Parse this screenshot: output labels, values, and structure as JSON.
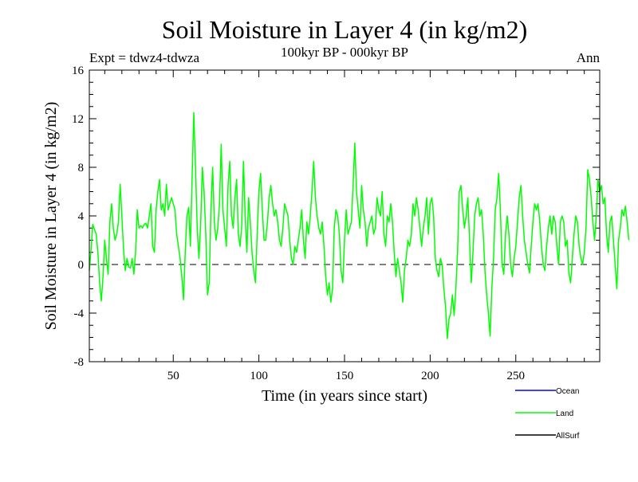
{
  "chart_data": {
    "type": "line",
    "title": "Soil Moisture in Layer 4 (in kg/m2)",
    "subtitle": "100kyr BP - 000kyr BP",
    "expt_label": "Expt = tdwz4-tdwza",
    "season_label": "Ann",
    "xlabel": "Time (in years since start)",
    "ylabel": "Soil Moisture in Layer 4 (in kg/m2)",
    "xlim": [
      1,
      299
    ],
    "ylim": [
      -8,
      16
    ],
    "x_ticks": [
      50,
      100,
      150,
      200,
      250
    ],
    "y_ticks": [
      -8,
      -4,
      0,
      4,
      8,
      12,
      16
    ],
    "grid": false,
    "zero_line": "dashed",
    "legend_position": "bottom-right",
    "series": [
      {
        "name": "Ocean",
        "color": "#0000ff",
        "values": []
      },
      {
        "name": "AllSurf",
        "color": "#000000",
        "values": []
      },
      {
        "name": "Land",
        "color": "#00ff00",
        "x_start": 1,
        "x_step": 1,
        "values": [
          -0.5,
          1.2,
          3.3,
          2.9,
          2.5,
          1.0,
          -1.5,
          -3.0,
          -1.0,
          2.0,
          0.5,
          -0.8,
          3.5,
          5.0,
          3.0,
          2.0,
          2.5,
          3.5,
          6.6,
          4.0,
          1.2,
          -0.5,
          0.5,
          -0.2,
          -0.3,
          0.5,
          -0.8,
          1.0,
          4.5,
          3.0,
          3.2,
          3.0,
          3.3,
          3.4,
          3.0,
          4.0,
          5.0,
          1.5,
          1.0,
          4.5,
          6.0,
          7.0,
          4.5,
          5.0,
          4.0,
          6.6,
          4.5,
          5.0,
          5.5,
          5.0,
          4.5,
          2.5,
          1.5,
          0.5,
          -1.0,
          -2.9,
          1.0,
          4.0,
          4.7,
          1.5,
          7.0,
          12.5,
          8.0,
          3.0,
          0.5,
          3.3,
          8.0,
          6.0,
          2.5,
          -2.5,
          -1.5,
          4.5,
          8.0,
          3.5,
          2.0,
          3.0,
          5.0,
          9.9,
          4.5,
          3.0,
          1.5,
          6.5,
          8.5,
          4.0,
          3.0,
          5.5,
          7.0,
          2.5,
          1.5,
          3.2,
          8.5,
          4.0,
          1.0,
          5.5,
          3.5,
          1.0,
          -0.5,
          -1.5,
          2.5,
          6.0,
          7.5,
          4.5,
          2.0,
          2.0,
          3.5,
          5.5,
          6.5,
          5.0,
          4.0,
          4.5,
          3.5,
          2.0,
          1.5,
          3.0,
          5.0,
          4.5,
          4.0,
          2.0,
          0.5,
          0.0,
          1.5,
          1.0,
          2.0,
          3.0,
          4.5,
          2.0,
          0.5,
          3.5,
          2.5,
          4.0,
          6.0,
          8.5,
          5.5,
          4.0,
          3.0,
          2.5,
          3.5,
          1.5,
          -1.0,
          -2.5,
          -1.5,
          -3.1,
          -2.0,
          3.0,
          4.5,
          4.0,
          2.5,
          -0.5,
          -1.5,
          2.0,
          4.5,
          2.5,
          3.0,
          3.5,
          6.5,
          10.0,
          6.0,
          4.5,
          3.0,
          6.5,
          4.5,
          3.5,
          1.5,
          3.0,
          3.5,
          4.0,
          2.5,
          3.0,
          5.5,
          4.5,
          4.0,
          6.0,
          2.5,
          1.5,
          4.0,
          3.5,
          5.0,
          3.5,
          1.0,
          -1.0,
          0.5,
          -0.5,
          -1.5,
          -3.1,
          -0.5,
          0.5,
          2.0,
          1.5,
          2.5,
          5.0,
          4.0,
          5.5,
          4.5,
          3.0,
          1.5,
          3.0,
          4.0,
          5.5,
          2.5,
          5.0,
          5.5,
          4.0,
          0.5,
          -0.5,
          -1.0,
          0.5,
          0.0,
          -2.0,
          -3.5,
          -6.1,
          -4.5,
          -4.0,
          -2.5,
          -4.2,
          -2.0,
          1.0,
          6.0,
          6.5,
          4.5,
          3.0,
          4.0,
          5.5,
          2.0,
          -1.5,
          1.0,
          4.0,
          5.0,
          5.5,
          4.0,
          4.5,
          2.5,
          -0.5,
          -2.5,
          -4.0,
          -5.9,
          -2.0,
          0.5,
          4.5,
          5.5,
          7.5,
          4.5,
          0.0,
          -0.8,
          2.5,
          4.0,
          2.5,
          0.0,
          -1.0,
          0.5,
          1.5,
          3.5,
          5.5,
          6.5,
          4.0,
          2.0,
          1.0,
          0.0,
          -0.7,
          1.5,
          3.5,
          5.0,
          4.5,
          5.0,
          3.5,
          1.5,
          0.0,
          -0.5,
          1.5,
          3.0,
          4.0,
          2.5,
          4.0,
          3.5,
          1.5,
          0.0,
          3.5,
          4.0,
          3.5,
          1.5,
          2.0,
          -0.7,
          -1.5,
          0.5,
          2.5,
          4.0,
          3.5,
          1.5,
          0.5,
          0.0,
          1.0,
          3.0,
          7.8,
          7.0,
          5.5,
          3.5,
          2.0,
          4.0,
          7.0,
          6.0,
          6.5,
          5.0,
          5.5,
          2.5,
          1.0,
          3.5,
          4.0,
          2.0,
          0.0,
          -2.0,
          2.0,
          3.0,
          4.5,
          4.0,
          4.8,
          3.5,
          2.0
        ]
      }
    ]
  },
  "legend": {
    "items": [
      {
        "label": "Ocean",
        "color": "#0000ff"
      },
      {
        "label": "Land",
        "color": "#00ff00"
      },
      {
        "label": "AllSurf",
        "color": "#000000"
      }
    ]
  }
}
